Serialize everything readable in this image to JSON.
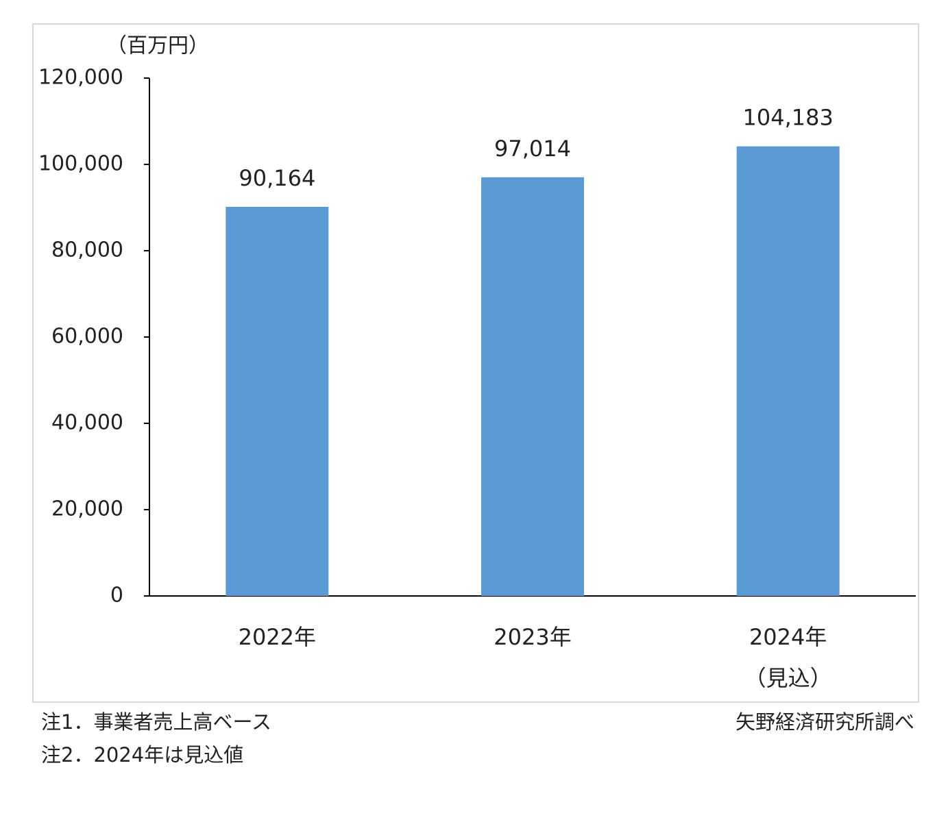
{
  "chart_data": {
    "type": "bar",
    "unit_label": "（百万円）",
    "categories": [
      "2022年",
      "2023年",
      "2024年"
    ],
    "category_sublabels": [
      null,
      null,
      "（見込）"
    ],
    "values": [
      90164,
      97014,
      104183
    ],
    "value_labels": [
      "90,164",
      "97,014",
      "104,183"
    ],
    "color": "#5b9bd5",
    "ylim": [
      0,
      120000
    ],
    "yticks": [
      0,
      {
        "value": 20000,
        "label": "20,000"
      },
      {
        "value": 40000,
        "label": "40,000"
      },
      {
        "value": 60000,
        "label": "60,000"
      },
      {
        "value": 80000,
        "label": "80,000"
      },
      {
        "value": 100000,
        "label": "100,000"
      },
      {
        "value": 120000,
        "label": "120,000"
      }
    ],
    "grid": false,
    "notes": [
      "注1．事業者売上高ベース",
      "注2．2024年は見込値"
    ],
    "source": "矢野経済研究所調べ"
  }
}
